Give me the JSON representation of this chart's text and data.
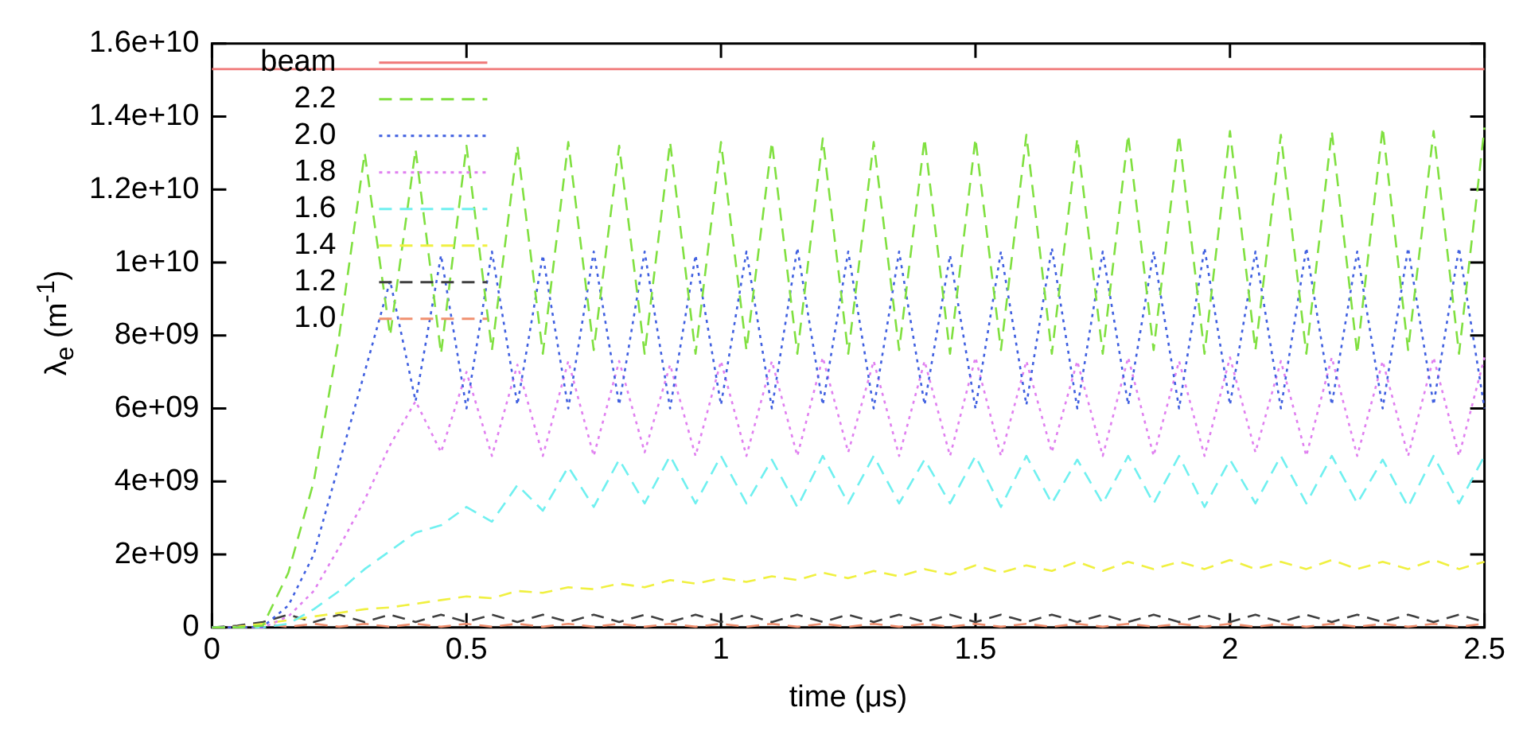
{
  "chart_data": {
    "type": "line",
    "xlabel": "time (μs)",
    "ylabel": "λ$_{e}$ (m$^{-1}$)",
    "x": [
      0,
      0.05,
      0.1,
      0.15,
      0.2,
      0.25,
      0.3,
      0.35,
      0.4,
      0.45,
      0.5,
      0.55,
      0.6,
      0.65,
      0.7,
      0.75,
      0.8,
      0.85,
      0.9,
      0.95,
      1,
      1.05,
      1.1,
      1.15,
      1.2,
      1.25,
      1.3,
      1.35,
      1.4,
      1.45,
      1.5,
      1.55,
      1.6,
      1.65,
      1.7,
      1.75,
      1.8,
      1.85,
      1.9,
      1.95,
      2,
      2.05,
      2.1,
      2.15,
      2.2,
      2.25,
      2.3,
      2.35,
      2.4,
      2.45,
      2.5
    ],
    "xlim": [
      0,
      2.5
    ],
    "xticks": [
      0,
      0.5,
      1,
      1.5,
      2,
      2.5
    ],
    "ylim": [
      0,
      16000000000.0
    ],
    "yticks": [
      {
        "value": 0,
        "label": "0"
      },
      {
        "value": 2000000000.0,
        "label": "2e+09"
      },
      {
        "value": 4000000000.0,
        "label": "4e+09"
      },
      {
        "value": 6000000000.0,
        "label": "6e+09"
      },
      {
        "value": 8000000000.0,
        "label": "8e+09"
      },
      {
        "value": 10000000000.0,
        "label": "1e+10"
      },
      {
        "value": 12000000000.0,
        "label": "1.2e+10"
      },
      {
        "value": 14000000000.0,
        "label": "1.4e+10"
      },
      {
        "value": 16000000000.0,
        "label": "1.6e+10"
      }
    ],
    "grid": false,
    "legend": "top left",
    "marker": "none",
    "series": [
      {
        "name": "beam",
        "color": "#f07878",
        "line_style": "solid",
        "x": [
          0,
          2.5
        ],
        "values": [
          15300000000.0,
          15300000000.0
        ]
      },
      {
        "name": "2.2",
        "color": "#80e040",
        "line_style": "dashed",
        "values": [
          0,
          0,
          50000000.0,
          1500000000.0,
          4000000000.0,
          8000000000.0,
          13000000000.0,
          8000000000.0,
          13100000000.0,
          7500000000.0,
          13200000000.0,
          7600000000.0,
          13200000000.0,
          7500000000.0,
          13300000000.0,
          7600000000.0,
          13200000000.0,
          7500000000.0,
          13300000000.0,
          7500000000.0,
          13300000000.0,
          7600000000.0,
          13300000000.0,
          7500000000.0,
          13400000000.0,
          7500000000.0,
          13300000000.0,
          7600000000.0,
          13400000000.0,
          7500000000.0,
          13400000000.0,
          7600000000.0,
          13500000000.0,
          7500000000.0,
          13400000000.0,
          7500000000.0,
          13500000000.0,
          7600000000.0,
          13500000000.0,
          7500000000.0,
          13600000000.0,
          7600000000.0,
          13500000000.0,
          7500000000.0,
          13600000000.0,
          7500000000.0,
          13700000000.0,
          7600000000.0,
          13600000000.0,
          7500000000.0,
          13700000000.0
        ]
      },
      {
        "name": "2.0",
        "color": "#4060e0",
        "line_style": "dotted",
        "values": [
          0,
          0,
          20000000.0,
          600000000.0,
          2000000000.0,
          4500000000.0,
          7000000000.0,
          9500000000.0,
          6200000000.0,
          10200000000.0,
          6000000000.0,
          10300000000.0,
          6100000000.0,
          10200000000.0,
          6000000000.0,
          10300000000.0,
          6100000000.0,
          10300000000.0,
          6000000000.0,
          10200000000.0,
          6100000000.0,
          10300000000.0,
          6000000000.0,
          10400000000.0,
          6100000000.0,
          10300000000.0,
          6000000000.0,
          10300000000.0,
          6100000000.0,
          10200000000.0,
          6000000000.0,
          10300000000.0,
          6100000000.0,
          10400000000.0,
          6000000000.0,
          10300000000.0,
          6100000000.0,
          10300000000.0,
          6000000000.0,
          10400000000.0,
          6100000000.0,
          10300000000.0,
          6000000000.0,
          10400000000.0,
          6100000000.0,
          10300000000.0,
          6000000000.0,
          10400000000.0,
          6100000000.0,
          10400000000.0,
          6000000000.0
        ]
      },
      {
        "name": "1.8",
        "color": "#e080f0",
        "line_style": "dotted",
        "values": [
          0,
          0,
          0,
          300000000.0,
          1000000000.0,
          2200000000.0,
          3500000000.0,
          5000000000.0,
          6200000000.0,
          4800000000.0,
          7000000000.0,
          4700000000.0,
          7200000000.0,
          4700000000.0,
          7300000000.0,
          4700000000.0,
          7300000000.0,
          4800000000.0,
          7200000000.0,
          4700000000.0,
          7300000000.0,
          4700000000.0,
          7300000000.0,
          4700000000.0,
          7400000000.0,
          4800000000.0,
          7300000000.0,
          4700000000.0,
          7300000000.0,
          4700000000.0,
          7400000000.0,
          4700000000.0,
          7300000000.0,
          4800000000.0,
          7300000000.0,
          4700000000.0,
          7400000000.0,
          4700000000.0,
          7300000000.0,
          4700000000.0,
          7400000000.0,
          4800000000.0,
          7300000000.0,
          4700000000.0,
          7400000000.0,
          4700000000.0,
          7300000000.0,
          4700000000.0,
          7400000000.0,
          4700000000.0,
          7400000000.0
        ]
      },
      {
        "name": "1.6",
        "color": "#70f0f0",
        "line_style": "dashed",
        "values": [
          0,
          0,
          0,
          100000000.0,
          500000000.0,
          1000000000.0,
          1600000000.0,
          2100000000.0,
          2600000000.0,
          2800000000.0,
          3300000000.0,
          2900000000.0,
          3900000000.0,
          3200000000.0,
          4400000000.0,
          3300000000.0,
          4600000000.0,
          3400000000.0,
          4700000000.0,
          3400000000.0,
          4700000000.0,
          3400000000.0,
          4600000000.0,
          3300000000.0,
          4700000000.0,
          3400000000.0,
          4700000000.0,
          3400000000.0,
          4600000000.0,
          3400000000.0,
          4700000000.0,
          3300000000.0,
          4700000000.0,
          3400000000.0,
          4600000000.0,
          3400000000.0,
          4700000000.0,
          3400000000.0,
          4700000000.0,
          3300000000.0,
          4600000000.0,
          3400000000.0,
          4700000000.0,
          3400000000.0,
          4700000000.0,
          3400000000.0,
          4600000000.0,
          3300000000.0,
          4700000000.0,
          3400000000.0,
          4700000000.0
        ]
      },
      {
        "name": "1.4",
        "color": "#f0f040",
        "line_style": "dashed",
        "values": [
          0,
          20000000.0,
          100000000.0,
          200000000.0,
          300000000.0,
          400000000.0,
          500000000.0,
          550000000.0,
          650000000.0,
          750000000.0,
          850000000.0,
          800000000.0,
          1000000000.0,
          950000000.0,
          1100000000.0,
          1050000000.0,
          1200000000.0,
          1100000000.0,
          1300000000.0,
          1200000000.0,
          1350000000.0,
          1250000000.0,
          1400000000.0,
          1300000000.0,
          1500000000.0,
          1350000000.0,
          1550000000.0,
          1400000000.0,
          1600000000.0,
          1450000000.0,
          1700000000.0,
          1500000000.0,
          1700000000.0,
          1550000000.0,
          1800000000.0,
          1550000000.0,
          1800000000.0,
          1600000000.0,
          1800000000.0,
          1600000000.0,
          1850000000.0,
          1600000000.0,
          1800000000.0,
          1600000000.0,
          1850000000.0,
          1600000000.0,
          1800000000.0,
          1600000000.0,
          1850000000.0,
          1600000000.0,
          1800000000.0
        ]
      },
      {
        "name": "1.2",
        "color": "#404040",
        "line_style": "dashed",
        "values": [
          0,
          50000000.0,
          150000000.0,
          350000000.0,
          150000000.0,
          350000000.0,
          150000000.0,
          350000000.0,
          150000000.0,
          350000000.0,
          150000000.0,
          350000000.0,
          150000000.0,
          350000000.0,
          150000000.0,
          350000000.0,
          150000000.0,
          350000000.0,
          150000000.0,
          350000000.0,
          150000000.0,
          350000000.0,
          150000000.0,
          350000000.0,
          150000000.0,
          350000000.0,
          150000000.0,
          350000000.0,
          150000000.0,
          350000000.0,
          150000000.0,
          350000000.0,
          150000000.0,
          350000000.0,
          150000000.0,
          350000000.0,
          150000000.0,
          350000000.0,
          150000000.0,
          350000000.0,
          150000000.0,
          350000000.0,
          150000000.0,
          350000000.0,
          150000000.0,
          350000000.0,
          150000000.0,
          350000000.0,
          150000000.0,
          350000000.0,
          150000000.0
        ]
      },
      {
        "name": "1.0",
        "color": "#f09070",
        "line_style": "dashed",
        "values": [
          0,
          20000000.0,
          100000000.0,
          20000000.0,
          100000000.0,
          20000000.0,
          100000000.0,
          20000000.0,
          100000000.0,
          20000000.0,
          100000000.0,
          20000000.0,
          100000000.0,
          20000000.0,
          100000000.0,
          20000000.0,
          100000000.0,
          20000000.0,
          100000000.0,
          20000000.0,
          100000000.0,
          20000000.0,
          100000000.0,
          20000000.0,
          100000000.0,
          20000000.0,
          100000000.0,
          20000000.0,
          100000000.0,
          20000000.0,
          100000000.0,
          20000000.0,
          100000000.0,
          20000000.0,
          100000000.0,
          20000000.0,
          100000000.0,
          20000000.0,
          100000000.0,
          20000000.0,
          100000000.0,
          20000000.0,
          100000000.0,
          20000000.0,
          100000000.0,
          20000000.0,
          100000000.0,
          20000000.0,
          100000000.0,
          20000000.0,
          100000000.0
        ]
      }
    ]
  }
}
